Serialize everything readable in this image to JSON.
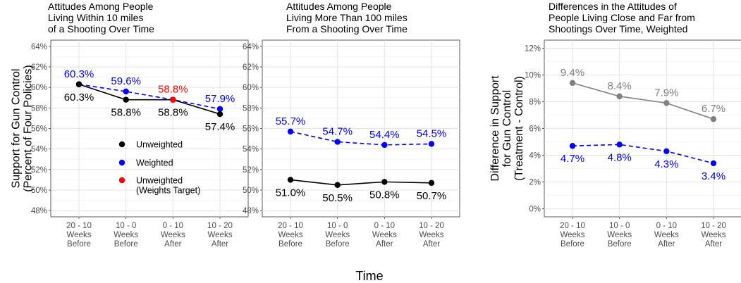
{
  "chart_data": [
    {
      "type": "line",
      "title": "Attitudes Among People\nLiving Within 10 miles\nof a Shooting Over Time",
      "ylabel": "Support for Gun Control\n(Percent of Four Policies)",
      "xlabel": "",
      "categories": [
        "20 - 10\nWeeks\nBefore",
        "10 - 0\nWeeks\nBefore",
        "0 - 10\nWeeks\nAfter",
        "10 - 20\nWeeks\nAfter"
      ],
      "ylim": [
        47.4,
        64.6
      ],
      "yticks": [
        48,
        50,
        52,
        54,
        56,
        58,
        60,
        62,
        64
      ],
      "ytick_labels": [
        "48%",
        "50%",
        "52%",
        "54%",
        "56%",
        "58%",
        "60%",
        "62%",
        "64%"
      ],
      "grid": true,
      "series": [
        {
          "name": "Weighted",
          "color": "#0000ff",
          "dash": true,
          "values": [
            60.3,
            59.6,
            58.8,
            57.9
          ],
          "labels": [
            "60.3%",
            "59.6%",
            "",
            "57.9%"
          ],
          "label_pos": [
            "above",
            "above",
            "above",
            "above"
          ]
        },
        {
          "name": "Unweighted",
          "color": "#000000",
          "dash": false,
          "values": [
            60.3,
            58.8,
            58.8,
            57.4
          ],
          "labels": [
            "60.3%",
            "58.8%",
            "58.8%",
            "57.4%"
          ],
          "label_pos": [
            "below",
            "below",
            "below",
            "below"
          ]
        },
        {
          "name": "Unweighted\n(Weights Target)",
          "color": "#ff0000",
          "dash": false,
          "markers_only": true,
          "values": [
            null,
            null,
            58.8,
            null
          ],
          "labels": [
            "",
            "",
            "58.8%",
            ""
          ],
          "label_pos": [
            "above",
            "above",
            "above",
            "above"
          ]
        }
      ],
      "legend": {
        "placement": "inside-left",
        "entries": [
          {
            "label": "Unweighted",
            "color": "#000000"
          },
          {
            "label": "Weighted",
            "color": "#0000ff"
          },
          {
            "label": "Unweighted\n(Weights Target)",
            "color": "#ff0000"
          }
        ]
      }
    },
    {
      "type": "line",
      "title": "Attitudes Among People\nLiving More Than 100 miles\nFrom a Shooting Over Time",
      "ylabel": "",
      "xlabel": "",
      "categories": [
        "20 - 10\nWeeks\nBefore",
        "10 - 0\nWeeks\nBefore",
        "0 - 10\nWeeks\nAfter",
        "10 - 20\nWeeks\nAfter"
      ],
      "ylim": [
        47.4,
        64.6
      ],
      "yticks": [
        48,
        50,
        52,
        54,
        56,
        58,
        60,
        62,
        64
      ],
      "ytick_labels": [
        "48%",
        "50%",
        "52%",
        "54%",
        "56%",
        "58%",
        "60%",
        "62%",
        "64%"
      ],
      "grid": true,
      "series": [
        {
          "name": "Weighted",
          "color": "#0000ff",
          "dash": true,
          "values": [
            55.7,
            54.7,
            54.4,
            54.5
          ],
          "labels": [
            "55.7%",
            "54.7%",
            "54.4%",
            "54.5%"
          ],
          "label_pos": [
            "above",
            "above",
            "above",
            "above"
          ]
        },
        {
          "name": "Unweighted",
          "color": "#000000",
          "dash": false,
          "values": [
            51.0,
            50.5,
            50.8,
            50.7
          ],
          "labels": [
            "51.0%",
            "50.5%",
            "50.8%",
            "50.7%"
          ],
          "label_pos": [
            "below",
            "below",
            "below",
            "below"
          ]
        }
      ]
    },
    {
      "type": "line",
      "title": "Differences in the Attitudes of\nPeople Living Close and Far from\nShootings Over Time, Weighted",
      "ylabel": "Difference in Support\nfor Gun Control\n(Treatment - Control)",
      "xlabel": "",
      "categories": [
        "20 - 10\nWeeks\nBefore",
        "10 - 0\nWeeks\nBefore",
        "0 - 10\nWeeks\nAfter",
        "10 - 20\nWeeks\nAfter"
      ],
      "ylim": [
        -0.6,
        12.6
      ],
      "yticks": [
        0,
        2,
        4,
        6,
        8,
        10,
        12
      ],
      "ytick_labels": [
        "0%",
        "2%",
        "4%",
        "6%",
        "8%",
        "10%",
        "12%"
      ],
      "grid": true,
      "series": [
        {
          "name": "Unweighted",
          "color": "#808080",
          "dash": false,
          "values": [
            9.4,
            8.4,
            7.9,
            6.7
          ],
          "labels": [
            "9.4%",
            "8.4%",
            "7.9%",
            "6.7%"
          ],
          "label_pos": [
            "above",
            "above",
            "above",
            "above"
          ]
        },
        {
          "name": "Weighted",
          "color": "#0000ff",
          "dash": true,
          "values": [
            4.7,
            4.8,
            4.3,
            3.4
          ],
          "labels": [
            "4.7%",
            "4.8%",
            "4.3%",
            "3.4%"
          ],
          "label_pos": [
            "below",
            "below",
            "below",
            "below"
          ]
        }
      ]
    }
  ],
  "shared_xlabel": "Time"
}
